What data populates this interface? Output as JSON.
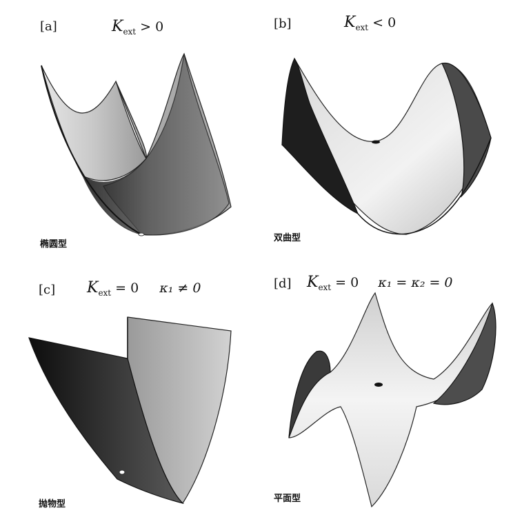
{
  "panels": [
    {
      "id": "a",
      "tag": "[a]",
      "formula": {
        "symbol": "K",
        "sub": "ext",
        "rest": " > 0"
      },
      "caption": "椭圆型"
    },
    {
      "id": "b",
      "tag": "[b]",
      "formula": {
        "symbol": "K",
        "sub": "ext",
        "rest": " < 0"
      },
      "caption": "双曲型"
    },
    {
      "id": "c",
      "tag": "[c]",
      "formula": {
        "symbol": "K",
        "sub": "ext",
        "rest": " = 0",
        "extra": "κ₁ ≠ 0"
      },
      "caption": "抛物型"
    },
    {
      "id": "d",
      "tag": "[d]",
      "formula": {
        "symbol": "K",
        "sub": "ext",
        "rest": " = 0",
        "extra": "κ₁ = κ₂ = 0"
      },
      "caption": "平面型"
    }
  ]
}
